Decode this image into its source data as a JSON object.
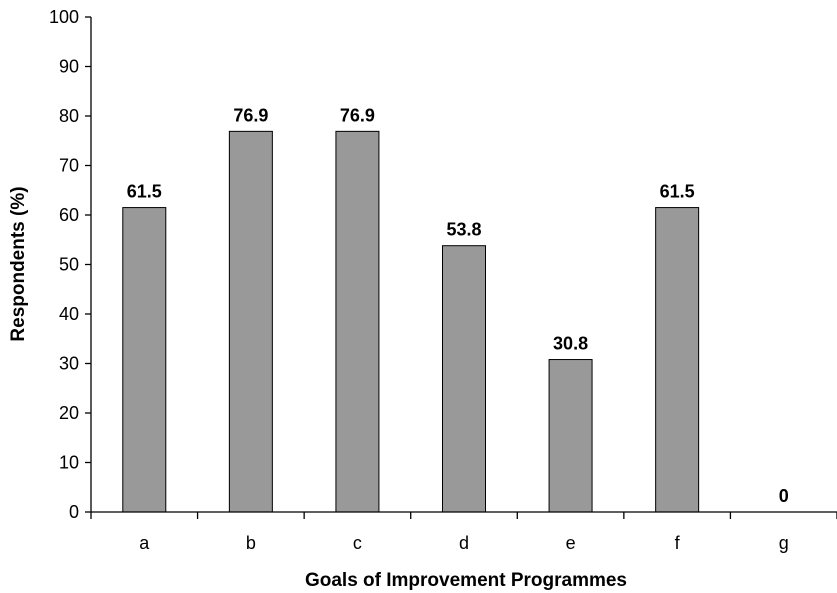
{
  "chart_data": {
    "type": "bar",
    "title": "",
    "xlabel": "Goals of Improvement Programmes",
    "ylabel": "Respondents (%)",
    "categories": [
      "a",
      "b",
      "c",
      "d",
      "e",
      "f",
      "g"
    ],
    "values": [
      61.5,
      76.9,
      76.9,
      53.8,
      30.8,
      61.5,
      0
    ],
    "data_labels": [
      "61.5",
      "76.9",
      "76.9",
      "53.8",
      "30.8",
      "61.5",
      "0"
    ],
    "ylim": [
      0,
      100
    ],
    "y_ticks": [
      0,
      10,
      20,
      30,
      40,
      50,
      60,
      70,
      80,
      90,
      100
    ],
    "y_tick_labels": [
      "0",
      "10",
      "20",
      "30",
      "40",
      "50",
      "60",
      "70",
      "80",
      "90",
      "100"
    ],
    "grid": false,
    "legend": "none",
    "bar_color": "#999999"
  }
}
